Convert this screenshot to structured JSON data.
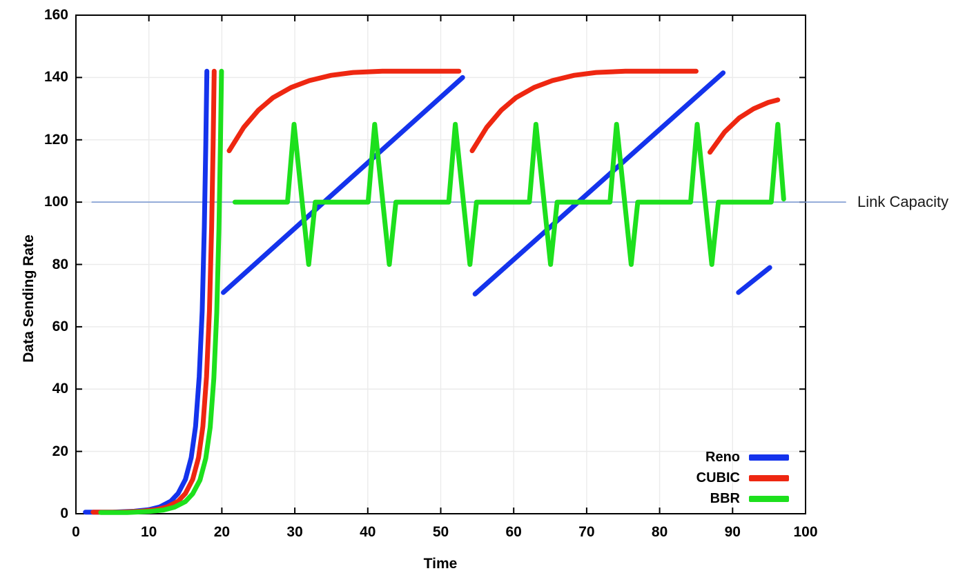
{
  "chart_data": {
    "type": "line",
    "title": "",
    "xlabel": "Time",
    "ylabel": "Data Sending Rate",
    "x_range": [
      0,
      100
    ],
    "y_range": [
      0,
      160
    ],
    "x_ticks": [
      0,
      10,
      20,
      30,
      40,
      50,
      60,
      70,
      80,
      90,
      100
    ],
    "y_ticks": [
      0,
      20,
      40,
      60,
      80,
      100,
      120,
      140,
      160
    ],
    "grid": true,
    "grid_color": "#ebebeb",
    "axis_color": "#000000",
    "legend_position": "inside-bottom-right",
    "legend_entries": [
      "Reno",
      "CUBIC",
      "BBR"
    ],
    "annotation": {
      "label": "Link Capacity",
      "value": 100,
      "color": "#7d9ad1"
    },
    "series": [
      {
        "name": "Link Capacity",
        "role": "reference-line",
        "color": "#7d9ad1",
        "width": 1.6,
        "segments": [
          [
            [
              2.2,
              100
            ],
            [
              105.5,
              100
            ]
          ]
        ]
      },
      {
        "name": "Reno",
        "color": "#1433ec",
        "width": 7,
        "segments": [
          [
            [
              1.3,
              0.5
            ],
            [
              5,
              0.5
            ],
            [
              8,
              0.8
            ],
            [
              10,
              1.3
            ],
            [
              11.5,
              2.2
            ],
            [
              13,
              4
            ],
            [
              14,
              6.5
            ],
            [
              15,
              11
            ],
            [
              15.8,
              18
            ],
            [
              16.4,
              28
            ],
            [
              16.9,
              44
            ],
            [
              17.3,
              65
            ],
            [
              17.6,
              92
            ],
            [
              17.8,
              118
            ],
            [
              17.95,
              142
            ]
          ],
          [
            [
              20.2,
              71
            ],
            [
              53,
              140
            ]
          ],
          [
            [
              54.7,
              70.5
            ],
            [
              88.7,
              141.5
            ]
          ],
          [
            [
              90.8,
              71
            ],
            [
              95.1,
              79
            ]
          ]
        ]
      },
      {
        "name": "CUBIC",
        "color": "#ee2711",
        "width": 7,
        "segments": [
          [
            [
              2.35,
              0.5
            ],
            [
              6,
              0.5
            ],
            [
              9,
              0.8
            ],
            [
              11,
              1.3
            ],
            [
              12.5,
              2.2
            ],
            [
              14,
              4
            ],
            [
              15,
              6.5
            ],
            [
              16,
              11
            ],
            [
              16.8,
              18
            ],
            [
              17.4,
              28
            ],
            [
              17.9,
              44
            ],
            [
              18.3,
              65
            ],
            [
              18.6,
              92
            ],
            [
              18.8,
              118
            ],
            [
              18.95,
              142
            ]
          ],
          [
            [
              21,
              116.5
            ],
            [
              23,
              124
            ],
            [
              25,
              129.5
            ],
            [
              27,
              133.5
            ],
            [
              29.5,
              136.8
            ],
            [
              32,
              139
            ],
            [
              35,
              140.7
            ],
            [
              38,
              141.6
            ],
            [
              42,
              142
            ],
            [
              52.5,
              142
            ]
          ],
          [
            [
              54.3,
              116.5
            ],
            [
              56.3,
              124
            ],
            [
              58.3,
              129.5
            ],
            [
              60.3,
              133.5
            ],
            [
              62.8,
              136.8
            ],
            [
              65.3,
              139
            ],
            [
              68.3,
              140.7
            ],
            [
              71.3,
              141.6
            ],
            [
              75.3,
              142
            ],
            [
              85,
              142
            ]
          ],
          [
            [
              86.9,
              116
            ],
            [
              88.9,
              122.5
            ],
            [
              90.9,
              127
            ],
            [
              92.9,
              130
            ],
            [
              94.9,
              132
            ],
            [
              96.2,
              132.8
            ]
          ]
        ]
      },
      {
        "name": "BBR",
        "color": "#1de01d",
        "width": 7,
        "segments": [
          [
            [
              3.4,
              0.4
            ],
            [
              7,
              0.4
            ],
            [
              10,
              0.7
            ],
            [
              12,
              1.2
            ],
            [
              13.5,
              2.1
            ],
            [
              15,
              3.9
            ],
            [
              16,
              6.4
            ],
            [
              17,
              10.8
            ],
            [
              17.8,
              17.8
            ],
            [
              18.4,
              27.7
            ],
            [
              18.9,
              43.5
            ],
            [
              19.3,
              64.5
            ],
            [
              19.6,
              91.5
            ],
            [
              19.8,
              118
            ],
            [
              19.95,
              142
            ]
          ],
          [
            [
              21.8,
              100
            ],
            [
              29,
              100
            ],
            [
              29.9,
              125
            ],
            [
              31.9,
              80
            ],
            [
              32.8,
              100
            ],
            [
              40.05,
              100
            ],
            [
              40.95,
              125
            ],
            [
              42.95,
              80
            ],
            [
              43.85,
              100
            ],
            [
              51.1,
              100
            ],
            [
              52,
              125
            ],
            [
              54,
              80
            ],
            [
              54.9,
              100
            ],
            [
              62.15,
              100
            ],
            [
              63.05,
              125
            ],
            [
              65.05,
              80
            ],
            [
              65.95,
              100
            ],
            [
              73.2,
              100
            ],
            [
              74.1,
              125
            ],
            [
              76.1,
              80
            ],
            [
              77,
              100
            ],
            [
              84.25,
              100
            ],
            [
              85.15,
              125
            ],
            [
              87.15,
              80
            ],
            [
              88.05,
              100
            ],
            [
              95.3,
              100
            ],
            [
              96.2,
              125
            ],
            [
              97,
              101
            ]
          ]
        ]
      }
    ]
  }
}
